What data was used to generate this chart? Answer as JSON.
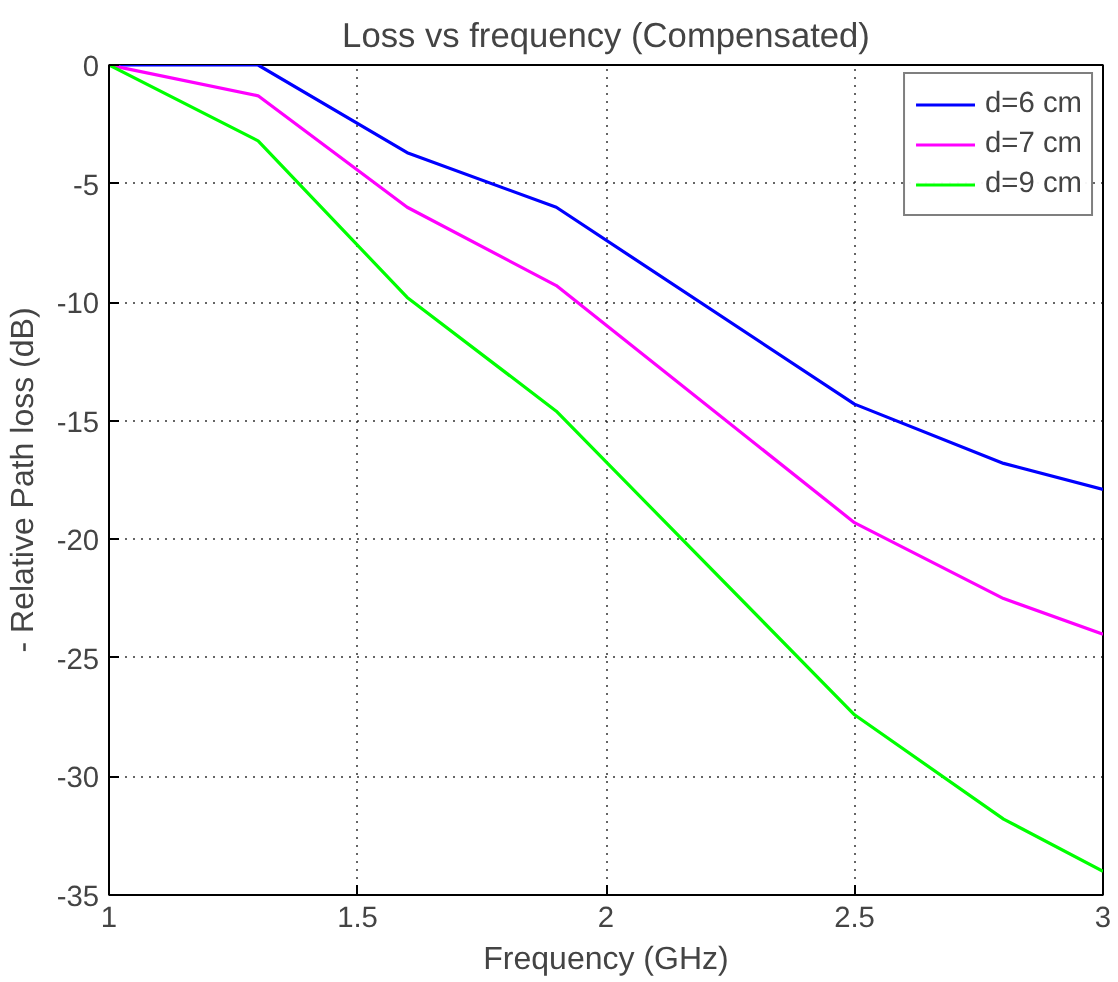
{
  "chart_data": {
    "type": "line",
    "title": "Loss vs frequency (Compensated)",
    "xlabel": "Frequency (GHz)",
    "ylabel": "- Relative Path loss (dB)",
    "x": [
      1,
      1.3,
      1.6,
      1.9,
      2.5,
      2.8,
      3
    ],
    "series": [
      {
        "name": "d=6 cm",
        "color": "#0000ff",
        "values": [
          0,
          0,
          -3.7,
          -6,
          -14.3,
          -16.8,
          -17.9
        ]
      },
      {
        "name": "d=7 cm",
        "color": "#ff00ff",
        "values": [
          0,
          -1.3,
          -6,
          -9.3,
          -19.3,
          -22.5,
          -24
        ]
      },
      {
        "name": "d=9 cm",
        "color": "#00ff00",
        "values": [
          0,
          -3.2,
          -9.8,
          -14.6,
          -27.4,
          -31.8,
          -34
        ]
      }
    ],
    "xlim": [
      1,
      3
    ],
    "ylim": [
      -35,
      0
    ],
    "xticks": [
      1,
      1.5,
      2,
      2.5,
      3
    ],
    "yticks": [
      -35,
      -30,
      -25,
      -20,
      -15,
      -10,
      -5,
      0
    ],
    "grid": true,
    "legend": "top right",
    "line_style": "solid",
    "marker": "none"
  }
}
